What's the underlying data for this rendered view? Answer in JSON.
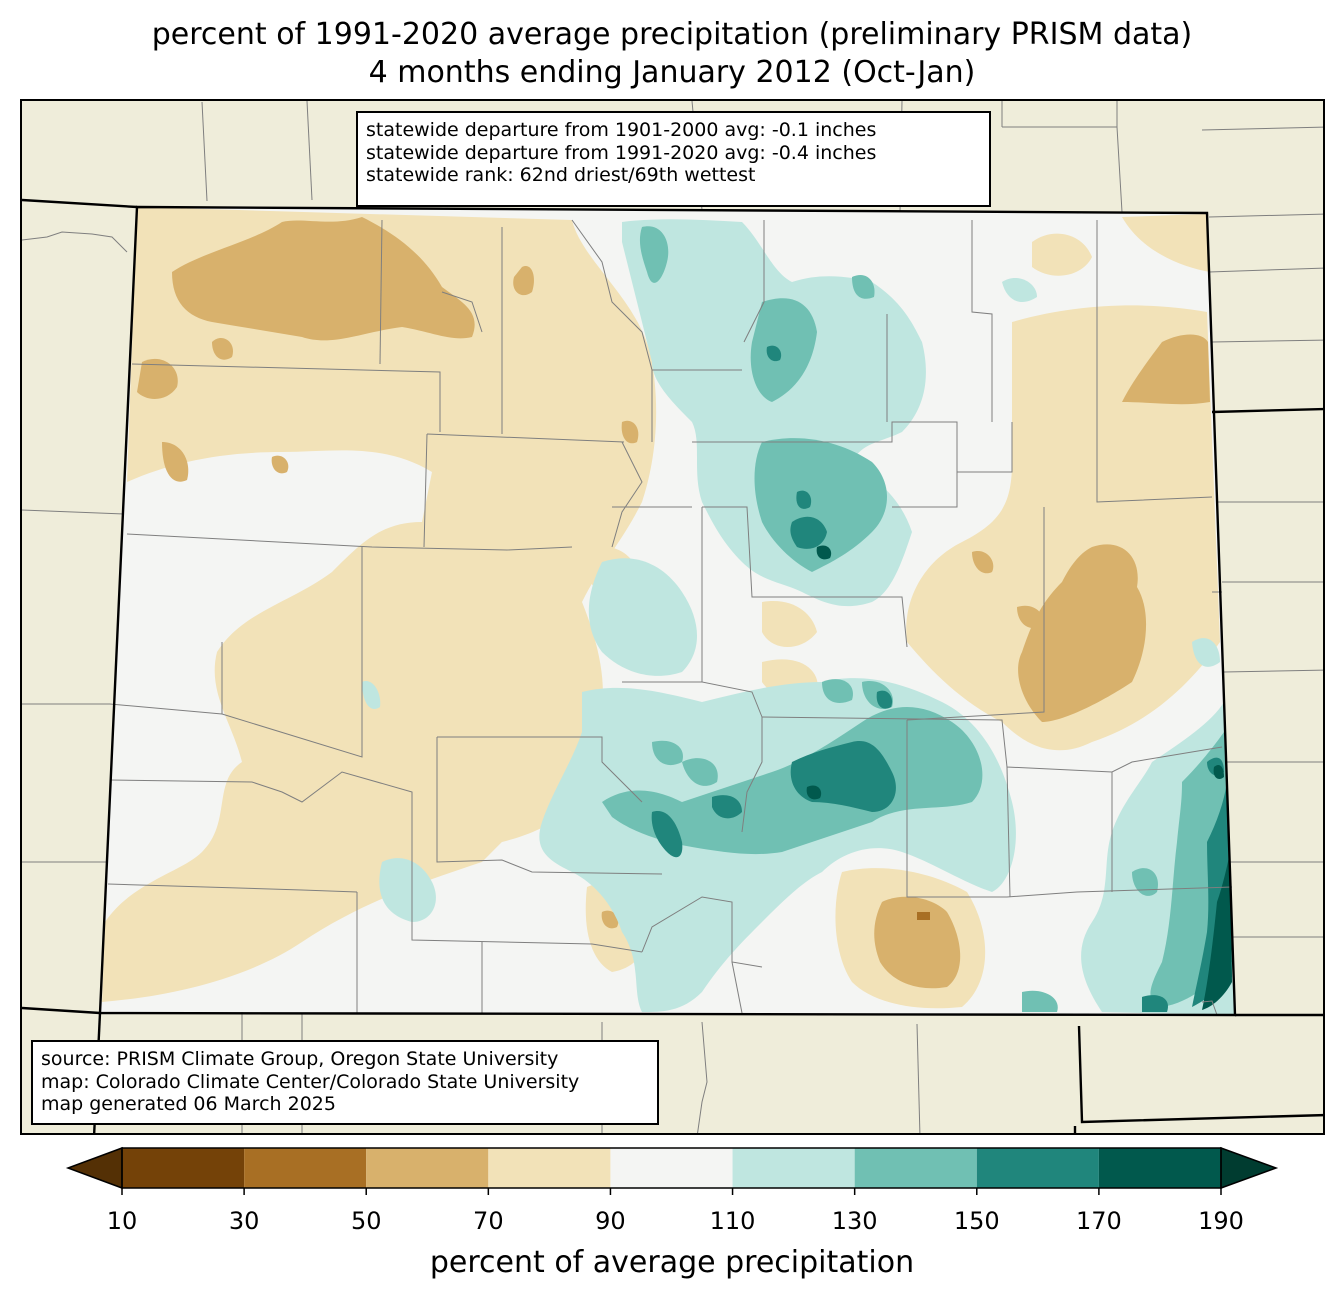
{
  "title": {
    "line1": "percent of 1991-2020 average precipitation (preliminary PRISM data)",
    "line2": "4 months ending January 2012 (Oct-Jan)"
  },
  "stats": {
    "line1": "statewide departure from 1901-2000 avg: -0.1 inches",
    "line2": "statewide departure from 1991-2020 avg: -0.4 inches",
    "line3": "statewide rank: 62nd driest/69th wettest"
  },
  "source": {
    "line1": "source: PRISM Climate Group, Oregon State University",
    "line2": "map: Colorado Climate Center/Colorado State University",
    "line3": "map generated 06 March 2025"
  },
  "colorbar": {
    "label": "percent of average precipitation",
    "ticks": [
      "10",
      "30",
      "50",
      "70",
      "90",
      "110",
      "130",
      "150",
      "170",
      "190"
    ],
    "under_color": "#543005",
    "over_color": "#003c30",
    "bins": [
      {
        "min": 10,
        "max": 30,
        "color": "#744208"
      },
      {
        "min": 30,
        "max": 50,
        "color": "#a86f24"
      },
      {
        "min": 50,
        "max": 70,
        "color": "#d8b16c"
      },
      {
        "min": 70,
        "max": 90,
        "color": "#f2e2b8"
      },
      {
        "min": 90,
        "max": 110,
        "color": "#f4f5f3"
      },
      {
        "min": 110,
        "max": 130,
        "color": "#bfe6e0"
      },
      {
        "min": 130,
        "max": 150,
        "color": "#70c0b3"
      },
      {
        "min": 150,
        "max": 170,
        "color": "#20867c"
      },
      {
        "min": 170,
        "max": 190,
        "color": "#01594d"
      }
    ]
  },
  "colors": {
    "land": "#efedda",
    "state_border": "#000000",
    "county_border": "#7f7f7f"
  }
}
